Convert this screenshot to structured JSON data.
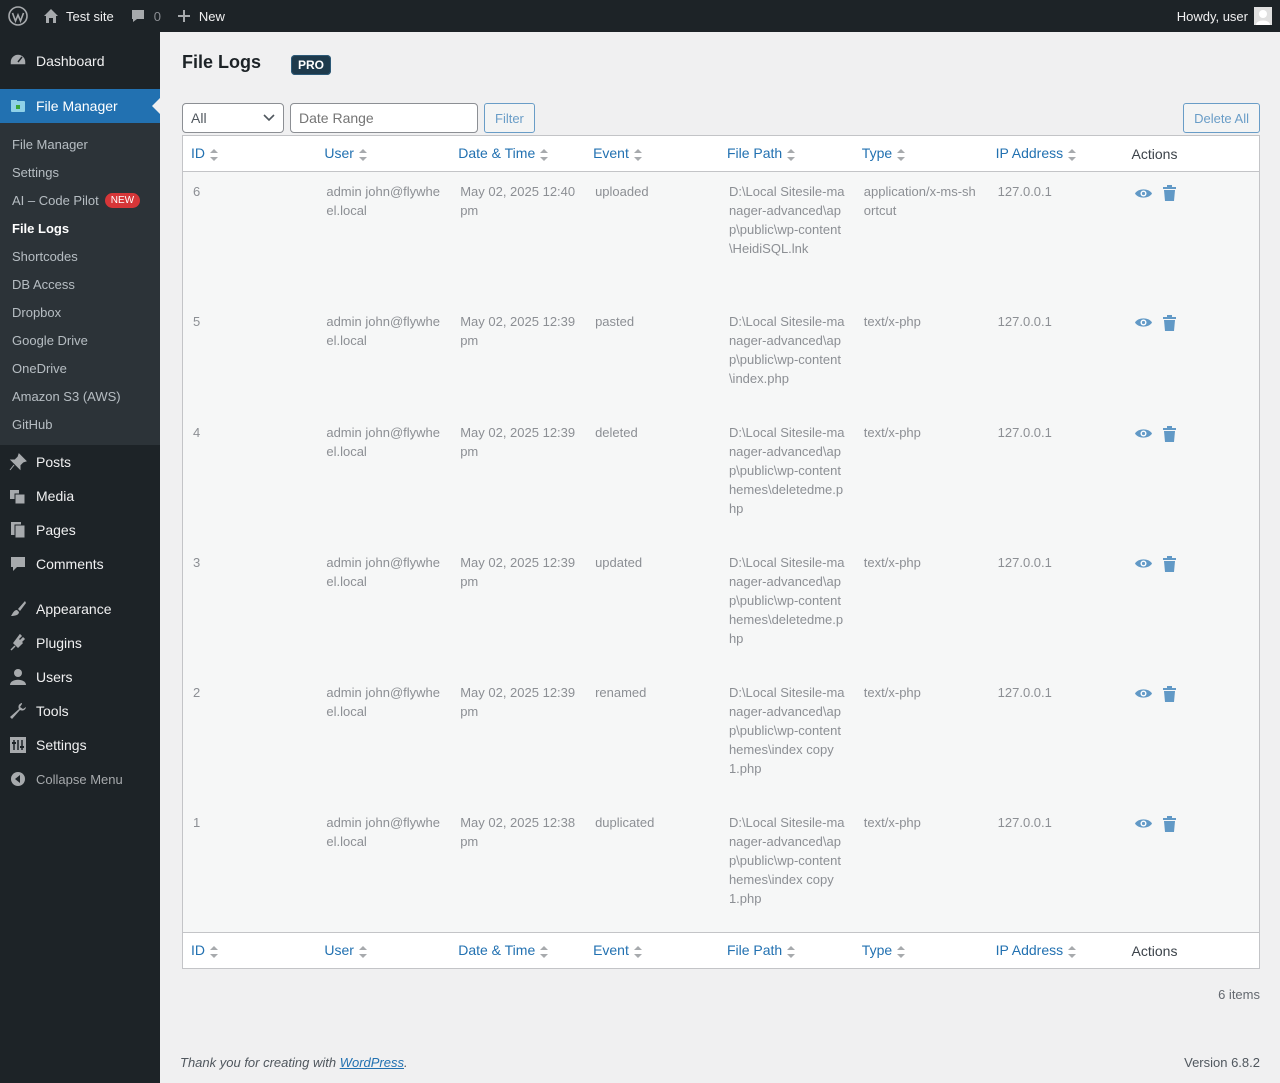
{
  "adminbar": {
    "site_name": "Test site",
    "comments_count": "0",
    "new_label": "New",
    "howdy": "Howdy, user"
  },
  "sidebar": {
    "dashboard": "Dashboard",
    "file_manager": "File Manager",
    "submenu": [
      {
        "label": "File Manager"
      },
      {
        "label": "Settings"
      },
      {
        "label": "AI – Code Pilot",
        "badge": "NEW"
      },
      {
        "label": "File Logs"
      },
      {
        "label": "Shortcodes"
      },
      {
        "label": "DB Access"
      },
      {
        "label": "Dropbox"
      },
      {
        "label": "Google Drive"
      },
      {
        "label": "OneDrive"
      },
      {
        "label": "Amazon S3 (AWS)"
      },
      {
        "label": "GitHub"
      }
    ],
    "posts": "Posts",
    "media": "Media",
    "pages": "Pages",
    "comments": "Comments",
    "appearance": "Appearance",
    "plugins": "Plugins",
    "users": "Users",
    "tools": "Tools",
    "settings": "Settings",
    "collapse": "Collapse Menu"
  },
  "page": {
    "title": "File Logs",
    "pro_badge": "PRO"
  },
  "filters": {
    "select_value": "All",
    "date_placeholder": "Date Range",
    "filter_button": "Filter",
    "delete_all_button": "Delete All"
  },
  "table": {
    "columns": [
      "ID",
      "User",
      "Date & Time",
      "Event",
      "File Path",
      "Type",
      "IP Address",
      "Actions"
    ],
    "rows": [
      {
        "id": "6",
        "user": "admin john@flywheel.local",
        "date": "May 02, 2025 12:40 pm",
        "event": "uploaded",
        "path": "D:\\Local Sites\u0001ile-manager-advanced\\app\\public\\wp-content\\HeidiSQL.lnk",
        "type": "application/x-ms-shortcut",
        "ip": "127.0.0.1"
      },
      {
        "id": "5",
        "user": "admin john@flywheel.local",
        "date": "May 02, 2025 12:39 pm",
        "event": "pasted",
        "path": "D:\\Local Sites\u0001ile-manager-advanced\\app\\public\\wp-content\\index.php",
        "type": "text/x-php",
        "ip": "127.0.0.1"
      },
      {
        "id": "4",
        "user": "admin john@flywheel.local",
        "date": "May 02, 2025 12:39 pm",
        "event": "deleted",
        "path": "D:\\Local Sites\u0001ile-manager-advanced\\app\\public\\wp-content hemes\\deletedme.php",
        "type": "text/x-php",
        "ip": "127.0.0.1"
      },
      {
        "id": "3",
        "user": "admin john@flywheel.local",
        "date": "May 02, 2025 12:39 pm",
        "event": "updated",
        "path": "D:\\Local Sites\u0001ile-manager-advanced\\app\\public\\wp-content hemes\\deletedme.php",
        "type": "text/x-php",
        "ip": "127.0.0.1"
      },
      {
        "id": "2",
        "user": "admin john@flywheel.local",
        "date": "May 02, 2025 12:39 pm",
        "event": "renamed",
        "path": "D:\\Local Sites\u0001ile-manager-advanced\\app\\public\\wp-content hemes\\index copy 1.php",
        "type": "text/x-php",
        "ip": "127.0.0.1"
      },
      {
        "id": "1",
        "user": "admin john@flywheel.local",
        "date": "May 02, 2025 12:38 pm",
        "event": "duplicated",
        "path": "D:\\Local Sites\u0001ile-manager-advanced\\app\\public\\wp-content hemes\\index copy 1.php",
        "type": "text/x-php",
        "ip": "127.0.0.1"
      }
    ]
  },
  "items_count": "6 items",
  "footer": {
    "thanks_prefix": "Thank you for creating with ",
    "wp_link": "WordPress",
    "thanks_suffix": ".",
    "version": "Version 6.8.2"
  },
  "colors": {
    "accent": "#2271b1",
    "sidebar_bg": "#1d2327",
    "pro_badge": "#1e3a4c"
  }
}
